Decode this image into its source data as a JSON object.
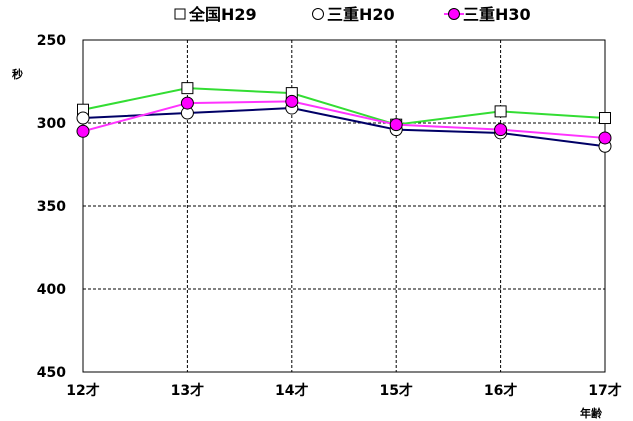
{
  "chart_data": {
    "type": "line",
    "categories": [
      "12才",
      "13才",
      "14才",
      "15才",
      "16才",
      "17才"
    ],
    "ylabel": "秒",
    "xlabel": "年齢",
    "ylim": [
      250,
      450
    ],
    "y_inverted": true,
    "y_ticks": [
      250,
      300,
      350,
      400,
      450
    ],
    "grid": true,
    "legend_position": "top",
    "series": [
      {
        "name": "全国H29",
        "marker": "square",
        "line_color": "#33dd33",
        "marker_fill": "#ffffff",
        "values": [
          292,
          279,
          282,
          301,
          293,
          297
        ]
      },
      {
        "name": "三重H20",
        "marker": "circle",
        "line_color": "#000066",
        "marker_fill": "#ffffff",
        "values": [
          297,
          294,
          291,
          304,
          306,
          314
        ]
      },
      {
        "name": "三重H30",
        "marker": "circle",
        "line_color": "#ff33ff",
        "marker_fill": "#ff00ff",
        "values": [
          305,
          288,
          287,
          301,
          304,
          309
        ]
      }
    ]
  }
}
